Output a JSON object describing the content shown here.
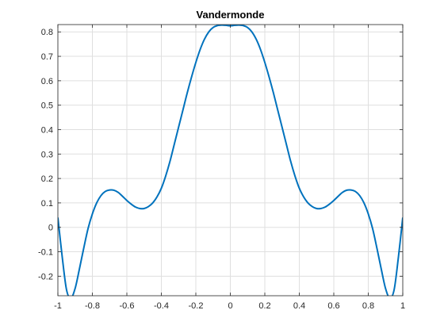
{
  "chart_data": {
    "type": "line",
    "title": "Vandermonde",
    "xlabel": "",
    "ylabel": "",
    "xlim": [
      -1,
      1
    ],
    "ylim": [
      -0.28,
      0.83
    ],
    "xticks": [
      "-1",
      "-0.8",
      "-0.6",
      "-0.4",
      "-0.2",
      "0",
      "0.2",
      "0.4",
      "0.6",
      "0.8",
      "1"
    ],
    "yticks": [
      "-0.2",
      "-0.1",
      "0",
      "0.1",
      "0.2",
      "0.3",
      "0.4",
      "0.5",
      "0.6",
      "0.7",
      "0.8"
    ],
    "grid": true,
    "series": [
      {
        "color": "#0072BD",
        "x": [
          -1,
          -0.975,
          -0.95,
          -0.925,
          -0.9,
          -0.875,
          -0.85,
          -0.825,
          -0.8,
          -0.775,
          -0.75,
          -0.725,
          -0.7,
          -0.675,
          -0.65,
          -0.625,
          -0.6,
          -0.575,
          -0.55,
          -0.525,
          -0.5,
          -0.475,
          -0.45,
          -0.425,
          -0.4,
          -0.375,
          -0.35,
          -0.325,
          -0.3,
          -0.275,
          -0.25,
          -0.225,
          -0.2,
          -0.175,
          -0.15,
          -0.125,
          -0.1,
          -0.075,
          -0.05,
          -0.025,
          0,
          0.025,
          0.05,
          0.075,
          0.1,
          0.125,
          0.15,
          0.175,
          0.2,
          0.225,
          0.25,
          0.275,
          0.3,
          0.325,
          0.35,
          0.375,
          0.4,
          0.425,
          0.45,
          0.475,
          0.5,
          0.525,
          0.55,
          0.575,
          0.6,
          0.625,
          0.65,
          0.675,
          0.7,
          0.725,
          0.75,
          0.775,
          0.8,
          0.825,
          0.85,
          0.875,
          0.9,
          0.925,
          0.95,
          0.975,
          1
        ],
        "y": [
          0.04,
          -0.12,
          -0.255,
          -0.29,
          -0.25,
          -0.17,
          -0.085,
          -0.005,
          0.055,
          0.1,
          0.13,
          0.147,
          0.153,
          0.152,
          0.143,
          0.127,
          0.11,
          0.095,
          0.083,
          0.077,
          0.077,
          0.085,
          0.1,
          0.125,
          0.16,
          0.21,
          0.27,
          0.34,
          0.41,
          0.48,
          0.55,
          0.615,
          0.675,
          0.728,
          0.77,
          0.8,
          0.818,
          0.826,
          0.828,
          0.827,
          0.825,
          0.827,
          0.828,
          0.826,
          0.818,
          0.8,
          0.77,
          0.728,
          0.675,
          0.615,
          0.55,
          0.48,
          0.41,
          0.34,
          0.27,
          0.21,
          0.16,
          0.125,
          0.1,
          0.085,
          0.077,
          0.077,
          0.083,
          0.095,
          0.11,
          0.127,
          0.143,
          0.152,
          0.153,
          0.147,
          0.13,
          0.1,
          0.055,
          -0.005,
          -0.085,
          -0.17,
          -0.25,
          -0.29,
          -0.255,
          -0.12,
          0.04
        ]
      }
    ]
  }
}
